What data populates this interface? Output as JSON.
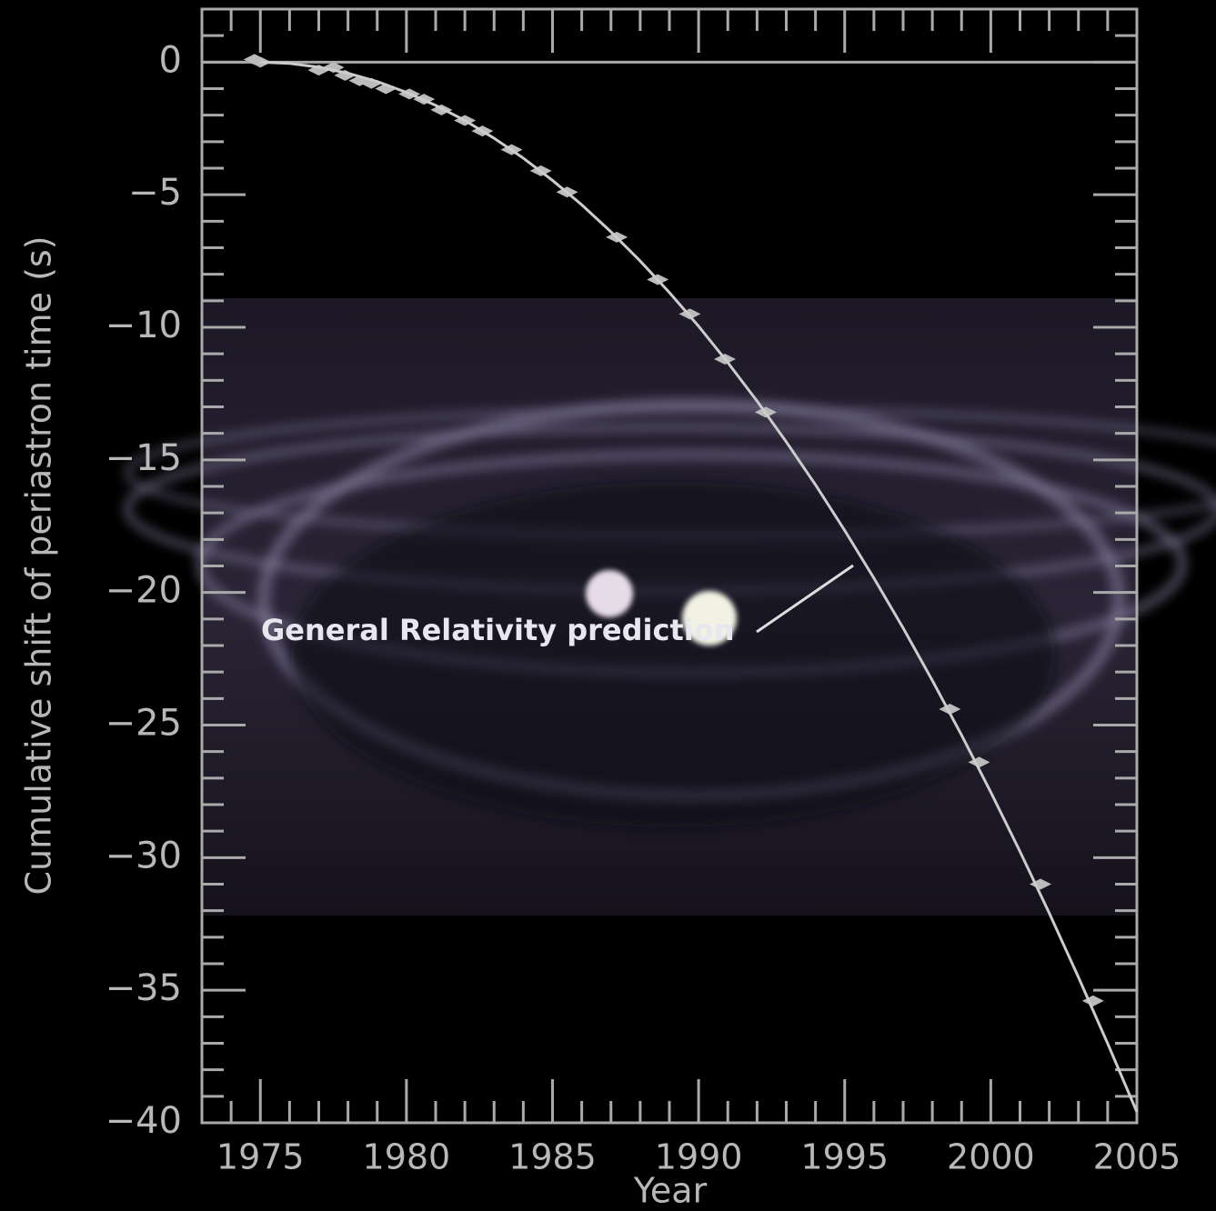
{
  "chart_data": {
    "type": "scatter",
    "xlabel": "Year",
    "ylabel": "Cumulative shift of periastron time (s)",
    "xlim": [
      1973,
      2005
    ],
    "ylim": [
      -40,
      2
    ],
    "xticks": [
      1975,
      1980,
      1985,
      1990,
      1995,
      2000,
      2005
    ],
    "yticks": [
      0,
      {
        "value": -5,
        "label": "−5"
      },
      {
        "value": -10,
        "label": "−10"
      },
      {
        "value": -15,
        "label": "−15"
      },
      {
        "value": -20,
        "label": "−20"
      },
      {
        "value": -25,
        "label": "−25"
      },
      {
        "value": -30,
        "label": "−30"
      },
      {
        "value": -35,
        "label": "−35"
      },
      {
        "value": -40,
        "label": "−40"
      }
    ],
    "x_minor_ticks": [
      1973,
      1974,
      1976,
      1977,
      1978,
      1979,
      1981,
      1982,
      1983,
      1984,
      1986,
      1987,
      1988,
      1989,
      1991,
      1992,
      1993,
      1994,
      1996,
      1997,
      1998,
      1999,
      2001,
      2002,
      2003,
      2004
    ],
    "y_minor_ticks": [
      1,
      -1,
      -2,
      -3,
      -4,
      -6,
      -7,
      -8,
      -9,
      -11,
      -12,
      -13,
      -14,
      -16,
      -17,
      -18,
      -19,
      -21,
      -22,
      -23,
      -24,
      -26,
      -27,
      -28,
      -29,
      -31,
      -32,
      -33,
      -34,
      -36,
      -37,
      -38,
      -39
    ],
    "reference_line": 0,
    "series": [
      {
        "color": "#bbbbbb",
        "x": [
          1974.8,
          1975.0,
          1977.0,
          1977.5,
          1977.9,
          1978.4,
          1978.8,
          1979.3,
          1980.1,
          1980.6,
          1981.2,
          1982.0,
          1982.6,
          1983.6,
          1984.6,
          1985.5,
          1987.2,
          1988.6,
          1989.7,
          1990.9,
          1992.3,
          1998.6,
          1999.6,
          2001.7,
          2003.5
        ],
        "values": [
          0.1,
          0,
          -0.3,
          -0.2,
          -0.5,
          -0.7,
          -0.8,
          -1.0,
          -1.2,
          -1.4,
          -1.8,
          -2.2,
          -2.6,
          -3.3,
          -4.1,
          -4.9,
          -6.6,
          -8.2,
          -9.5,
          -11.2,
          -13.2,
          -24.4,
          -26.4,
          -31.0,
          -35.4
        ]
      },
      {
        "name": "General Relativity prediction",
        "color": "#cccccc",
        "type": "line",
        "x": [
          1975,
          1976,
          1977,
          1978,
          1979,
          1980,
          1981,
          1982,
          1983,
          1984,
          1985,
          1986,
          1987,
          1988,
          1989,
          1990,
          1991,
          1992,
          1993,
          1994,
          1995,
          1996,
          1997,
          1998,
          1999,
          2000,
          2001,
          2002,
          2003,
          2004,
          2005
        ],
        "values": [
          0,
          -0.05,
          -0.19,
          -0.42,
          -0.73,
          -1.14,
          -1.63,
          -2.2,
          -2.87,
          -3.62,
          -4.46,
          -5.38,
          -6.4,
          -7.5,
          -8.69,
          -9.96,
          -11.33,
          -12.78,
          -14.32,
          -15.94,
          -17.66,
          -19.46,
          -21.34,
          -23.32,
          -25.38,
          -27.53,
          -29.77,
          -32.09,
          -34.51,
          -37.01,
          -39.59
        ]
      }
    ]
  }
}
